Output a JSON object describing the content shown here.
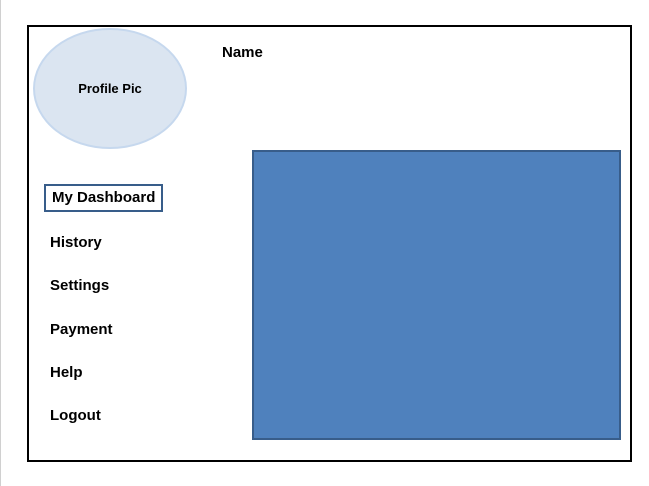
{
  "profile": {
    "pic_label": "Profile Pic",
    "name_label": "Name"
  },
  "nav": {
    "items": [
      {
        "label": "My Dashboard",
        "active": true
      },
      {
        "label": "History",
        "active": false
      },
      {
        "label": "Settings",
        "active": false
      },
      {
        "label": "Payment",
        "active": false
      },
      {
        "label": "Help",
        "active": false
      },
      {
        "label": "Logout",
        "active": false
      }
    ]
  },
  "colors": {
    "profile_fill": "#dbe5f1",
    "content_fill": "#4f81bd",
    "active_border": "#385d8a"
  }
}
